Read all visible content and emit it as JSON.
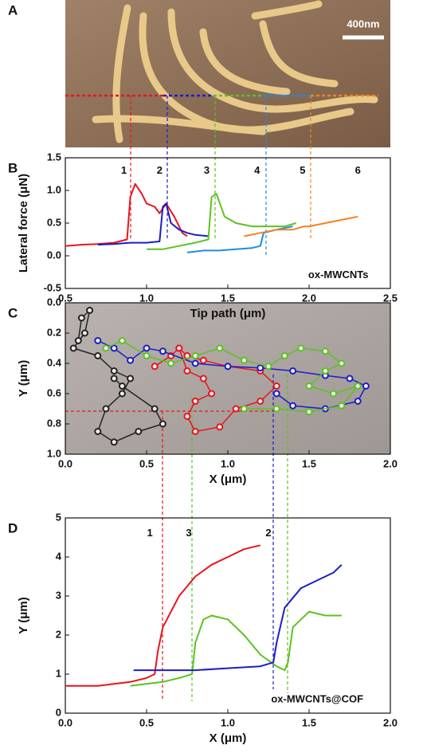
{
  "chart_data": [
    {
      "type": "image",
      "panel": "A",
      "scale_label": "400nm"
    },
    {
      "type": "line",
      "panel": "B",
      "xlabel": "Tip path (μm)",
      "ylabel": "Lateral force (μN)",
      "xlim": [
        0.5,
        2.5
      ],
      "xticks": [
        0.5,
        {
          "value": 1,
          "label": "1.0"
        },
        1.5,
        {
          "value": 2,
          "label": "2.0"
        },
        2.5
      ],
      "ylim": [
        -0.5,
        1.5
      ],
      "yticks": [
        -0.5,
        {
          "value": 0,
          "label": "0.0"
        },
        0.5,
        {
          "value": 1,
          "label": "1.0"
        },
        1.5
      ],
      "series": [
        {
          "color": "#e8141c",
          "x": [
            0.5,
            0.6,
            0.7,
            0.8,
            0.88,
            0.9,
            0.93,
            0.97,
            1.0,
            1.05,
            1.08,
            1.12,
            1.17,
            1.22,
            1.25
          ],
          "values": [
            0.15,
            0.17,
            0.18,
            0.2,
            0.25,
            0.9,
            1.1,
            0.95,
            0.8,
            0.75,
            0.65,
            0.8,
            0.6,
            0.35,
            0.3
          ]
        },
        {
          "color": "#1c1cc8",
          "x": [
            0.7,
            0.8,
            0.9,
            1.0,
            1.08,
            1.1,
            1.12,
            1.15,
            1.2,
            1.25,
            1.3,
            1.38
          ],
          "values": [
            0.17,
            0.18,
            0.2,
            0.2,
            0.22,
            0.75,
            0.8,
            0.5,
            0.4,
            0.35,
            0.32,
            0.3
          ]
        },
        {
          "color": "#5cc21e",
          "x": [
            1.0,
            1.1,
            1.2,
            1.3,
            1.38,
            1.4,
            1.43,
            1.48,
            1.55,
            1.65,
            1.75,
            1.85,
            1.92
          ],
          "values": [
            0.1,
            0.1,
            0.15,
            0.2,
            0.25,
            0.9,
            0.95,
            0.6,
            0.5,
            0.45,
            0.45,
            0.45,
            0.5
          ]
        },
        {
          "color": "#1e8ce6",
          "x": [
            1.25,
            1.35,
            1.45,
            1.55,
            1.65,
            1.7,
            1.72,
            1.8,
            1.9
          ],
          "values": [
            0.05,
            0.08,
            0.08,
            0.1,
            0.12,
            0.15,
            0.35,
            0.4,
            0.45
          ]
        },
        {
          "color": "#f5821e",
          "x": [
            1.6,
            1.7,
            1.8,
            1.9,
            1.97,
            2.0,
            2.1,
            2.2,
            2.3
          ],
          "values": [
            0.3,
            0.35,
            0.4,
            0.4,
            0.45,
            0.45,
            0.5,
            0.55,
            0.6
          ]
        }
      ],
      "annotations": [
        {
          "text": "1",
          "x": 0.86,
          "y": 1.3
        },
        {
          "text": "2",
          "x": 1.08,
          "y": 1.3
        },
        {
          "text": "3",
          "x": 1.37,
          "y": 1.3
        },
        {
          "text": "4",
          "x": 1.68,
          "y": 1.3
        },
        {
          "text": "5",
          "x": 1.96,
          "y": 1.3
        },
        {
          "text": "6",
          "x": 2.3,
          "y": 1.3
        },
        {
          "text": "ox-MWCNTs",
          "x": 2.18,
          "y": -0.3
        }
      ]
    },
    {
      "type": "scatter",
      "panel": "C",
      "xlabel": "X (μm)",
      "ylabel": "Y (μm)",
      "xlim": [
        0,
        2
      ],
      "xticks": [
        {
          "value": 0,
          "label": "0.0"
        },
        0.5,
        {
          "value": 1,
          "label": "1.0"
        },
        1.5,
        {
          "value": 2,
          "label": "2.0"
        }
      ],
      "ylim": [
        1,
        0
      ],
      "yticks": [
        {
          "value": 0,
          "label": "0.0"
        },
        0.2,
        0.4,
        0.6,
        0.8,
        {
          "value": 1,
          "label": "1.0"
        }
      ],
      "series": [
        {
          "color": "#222222",
          "x": [
            0.08,
            0.1,
            0.15,
            0.12,
            0.05,
            0.2,
            0.3,
            0.4,
            0.35,
            0.25,
            0.2,
            0.3,
            0.45,
            0.6,
            0.55,
            0.35,
            0.3
          ],
          "values": [
            0.25,
            0.1,
            0.05,
            0.2,
            0.3,
            0.35,
            0.45,
            0.5,
            0.6,
            0.7,
            0.85,
            0.92,
            0.85,
            0.8,
            0.7,
            0.55,
            0.5
          ]
        },
        {
          "color": "#e8141c",
          "x": [
            0.55,
            0.65,
            0.7,
            0.75,
            0.85,
            0.9,
            0.8,
            0.75,
            0.8,
            0.95,
            1.05,
            1.2,
            1.3,
            1.2,
            1.0,
            0.85,
            0.75,
            0.7
          ],
          "values": [
            0.42,
            0.35,
            0.3,
            0.45,
            0.5,
            0.6,
            0.65,
            0.75,
            0.85,
            0.82,
            0.7,
            0.65,
            0.55,
            0.45,
            0.42,
            0.38,
            0.35,
            0.3
          ]
        },
        {
          "color": "#1c1cc8",
          "x": [
            0.2,
            0.3,
            0.4,
            0.5,
            0.6,
            0.8,
            1.0,
            1.2,
            1.4,
            1.6,
            1.75,
            1.85,
            1.8,
            1.6,
            1.4,
            1.3
          ],
          "values": [
            0.25,
            0.3,
            0.38,
            0.3,
            0.32,
            0.4,
            0.42,
            0.43,
            0.45,
            0.48,
            0.5,
            0.55,
            0.65,
            0.7,
            0.68,
            0.6
          ]
        },
        {
          "color": "#5cc21e",
          "x": [
            0.25,
            0.35,
            0.5,
            0.65,
            0.8,
            0.95,
            1.1,
            1.25,
            1.35,
            1.45,
            1.6,
            1.7,
            1.6,
            1.5,
            1.65,
            1.8,
            1.7,
            1.5,
            1.3,
            1.1
          ],
          "values": [
            0.3,
            0.25,
            0.35,
            0.4,
            0.35,
            0.3,
            0.38,
            0.42,
            0.35,
            0.3,
            0.32,
            0.4,
            0.45,
            0.55,
            0.6,
            0.55,
            0.68,
            0.72,
            0.7,
            0.7
          ]
        }
      ]
    },
    {
      "type": "line",
      "panel": "D",
      "xlabel": "X (μm)",
      "ylabel": "Y (μm)",
      "xlim": [
        0,
        2
      ],
      "xticks": [
        {
          "value": 0,
          "label": "0.0"
        },
        0.5,
        {
          "value": 1,
          "label": "1.0"
        },
        1.5,
        {
          "value": 2,
          "label": "2.0"
        }
      ],
      "ylim": [
        0,
        5
      ],
      "yticks": [
        0,
        1,
        2,
        3,
        4,
        5
      ],
      "series": [
        {
          "color": "#e8141c",
          "x": [
            0,
            0.1,
            0.2,
            0.3,
            0.4,
            0.5,
            0.55,
            0.57,
            0.6,
            0.7,
            0.8,
            0.9,
            1.0,
            1.1,
            1.2
          ],
          "values": [
            0.7,
            0.7,
            0.7,
            0.75,
            0.8,
            0.9,
            1.0,
            1.6,
            2.2,
            3.0,
            3.5,
            3.8,
            4.0,
            4.2,
            4.3
          ]
        },
        {
          "color": "#5cc21e",
          "x": [
            0.4,
            0.5,
            0.6,
            0.7,
            0.78,
            0.8,
            0.85,
            0.9,
            1.0,
            1.1,
            1.2,
            1.3,
            1.35,
            1.37,
            1.4,
            1.5,
            1.6,
            1.7
          ],
          "values": [
            0.7,
            0.75,
            0.8,
            0.9,
            1.0,
            1.8,
            2.4,
            2.5,
            2.4,
            2.0,
            1.5,
            1.2,
            1.1,
            1.3,
            2.2,
            2.6,
            2.5,
            2.5
          ]
        },
        {
          "color": "#1c1cc8",
          "x": [
            0.42,
            0.6,
            0.8,
            1.0,
            1.2,
            1.28,
            1.3,
            1.35,
            1.45,
            1.55,
            1.65,
            1.7
          ],
          "values": [
            1.1,
            1.1,
            1.1,
            1.15,
            1.2,
            1.3,
            1.8,
            2.7,
            3.2,
            3.4,
            3.6,
            3.8
          ]
        }
      ],
      "annotations": [
        {
          "text": "1",
          "x": 0.52,
          "y": 4.6
        },
        {
          "text": "3",
          "x": 0.76,
          "y": 4.6
        },
        {
          "text": "2",
          "x": 1.25,
          "y": 4.6
        },
        {
          "text": "ox-MWCNTs@COF",
          "x": 1.55,
          "y": 0.35
        }
      ]
    }
  ]
}
